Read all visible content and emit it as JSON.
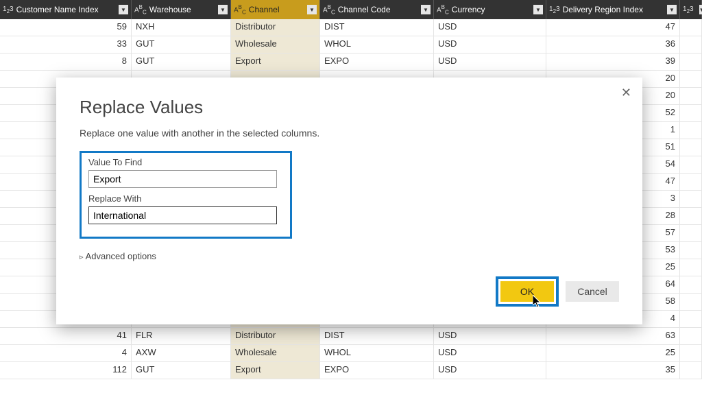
{
  "columns": [
    {
      "type": "1₂3",
      "label": "Customer Name Index",
      "highlighted": false
    },
    {
      "type": "ABC",
      "label": "Warehouse",
      "highlighted": false
    },
    {
      "type": "ABC",
      "label": "Channel",
      "highlighted": true
    },
    {
      "type": "ABC",
      "label": "Channel Code",
      "highlighted": false
    },
    {
      "type": "ABC",
      "label": "Currency",
      "highlighted": false
    },
    {
      "type": "1₂3",
      "label": "Delivery Region Index",
      "highlighted": false
    },
    {
      "type": "1₂3",
      "label": "",
      "highlighted": false
    }
  ],
  "rows": [
    {
      "idx": "59",
      "wh": "NXH",
      "ch": "Distributor",
      "cc": "DIST",
      "cur": "USD",
      "dri": "47"
    },
    {
      "idx": "33",
      "wh": "GUT",
      "ch": "Wholesale",
      "cc": "WHOL",
      "cur": "USD",
      "dri": "36"
    },
    {
      "idx": "8",
      "wh": "GUT",
      "ch": "Export",
      "cc": "EXPO",
      "cur": "USD",
      "dri": "39"
    },
    {
      "idx": "",
      "wh": "",
      "ch": "",
      "cc": "",
      "cur": "",
      "dri": "20"
    },
    {
      "idx": "",
      "wh": "",
      "ch": "",
      "cc": "",
      "cur": "",
      "dri": "20"
    },
    {
      "idx": "",
      "wh": "",
      "ch": "",
      "cc": "",
      "cur": "",
      "dri": "52"
    },
    {
      "idx": "",
      "wh": "",
      "ch": "",
      "cc": "",
      "cur": "",
      "dri": "1"
    },
    {
      "idx": "",
      "wh": "",
      "ch": "",
      "cc": "",
      "cur": "",
      "dri": "51"
    },
    {
      "idx": "",
      "wh": "",
      "ch": "",
      "cc": "",
      "cur": "",
      "dri": "54"
    },
    {
      "idx": "",
      "wh": "",
      "ch": "",
      "cc": "",
      "cur": "",
      "dri": "47"
    },
    {
      "idx": "",
      "wh": "",
      "ch": "",
      "cc": "",
      "cur": "",
      "dri": "3"
    },
    {
      "idx": "",
      "wh": "",
      "ch": "",
      "cc": "",
      "cur": "",
      "dri": "28"
    },
    {
      "idx": "",
      "wh": "",
      "ch": "",
      "cc": "",
      "cur": "",
      "dri": "57"
    },
    {
      "idx": "",
      "wh": "",
      "ch": "",
      "cc": "",
      "cur": "",
      "dri": "53"
    },
    {
      "idx": "",
      "wh": "",
      "ch": "",
      "cc": "",
      "cur": "",
      "dri": "25"
    },
    {
      "idx": "",
      "wh": "",
      "ch": "",
      "cc": "",
      "cur": "",
      "dri": "64"
    },
    {
      "idx": "",
      "wh": "",
      "ch": "",
      "cc": "",
      "cur": "",
      "dri": "58"
    },
    {
      "idx": "",
      "wh": "",
      "ch": "",
      "cc": "",
      "cur": "",
      "dri": "4"
    },
    {
      "idx": "41",
      "wh": "FLR",
      "ch": "Distributor",
      "cc": "DIST",
      "cur": "USD",
      "dri": "63"
    },
    {
      "idx": "4",
      "wh": "AXW",
      "ch": "Wholesale",
      "cc": "WHOL",
      "cur": "USD",
      "dri": "25"
    },
    {
      "idx": "112",
      "wh": "GUT",
      "ch": "Export",
      "cc": "EXPO",
      "cur": "USD",
      "dri": "35"
    }
  ],
  "dialog": {
    "title": "Replace Values",
    "description": "Replace one value with another in the selected columns.",
    "findLabel": "Value To Find",
    "findValue": "Export",
    "replaceLabel": "Replace With",
    "replaceValue": "International",
    "advanced": "Advanced options",
    "ok": "OK",
    "cancel": "Cancel"
  }
}
